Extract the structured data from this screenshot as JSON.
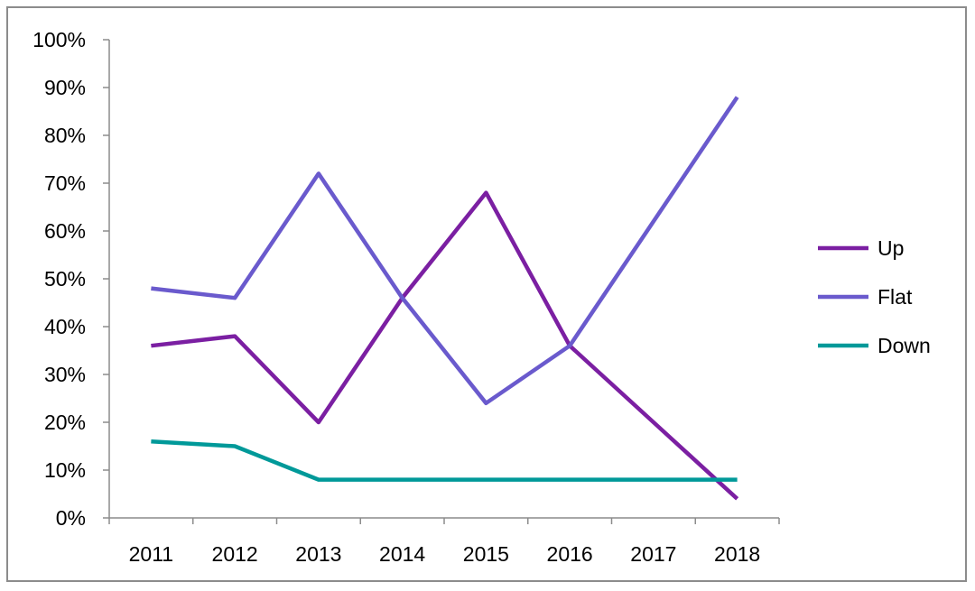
{
  "chart_data": {
    "type": "line",
    "title": "",
    "xlabel": "",
    "ylabel": "",
    "categories": [
      "2011",
      "2012",
      "2013",
      "2014",
      "2015",
      "2016",
      "2017",
      "2018"
    ],
    "ylim": [
      0,
      100
    ],
    "yticks": [
      0,
      10,
      20,
      30,
      40,
      50,
      60,
      70,
      80,
      90,
      100
    ],
    "ytick_labels": [
      "0%",
      "10%",
      "20%",
      "30%",
      "40%",
      "50%",
      "60%",
      "70%",
      "80%",
      "90%",
      "100%"
    ],
    "grid": false,
    "legend_position": "right",
    "series": [
      {
        "name": "Up",
        "color": "#7b1fa2",
        "values": [
          36,
          38,
          20,
          46,
          68,
          36,
          20,
          4
        ]
      },
      {
        "name": "Flat",
        "color": "#6a5acd",
        "values": [
          48,
          46,
          72,
          46,
          24,
          36,
          62,
          88
        ]
      },
      {
        "name": "Down",
        "color": "#009999",
        "values": [
          16,
          15,
          8,
          8,
          8,
          8,
          8,
          8
        ]
      }
    ]
  }
}
